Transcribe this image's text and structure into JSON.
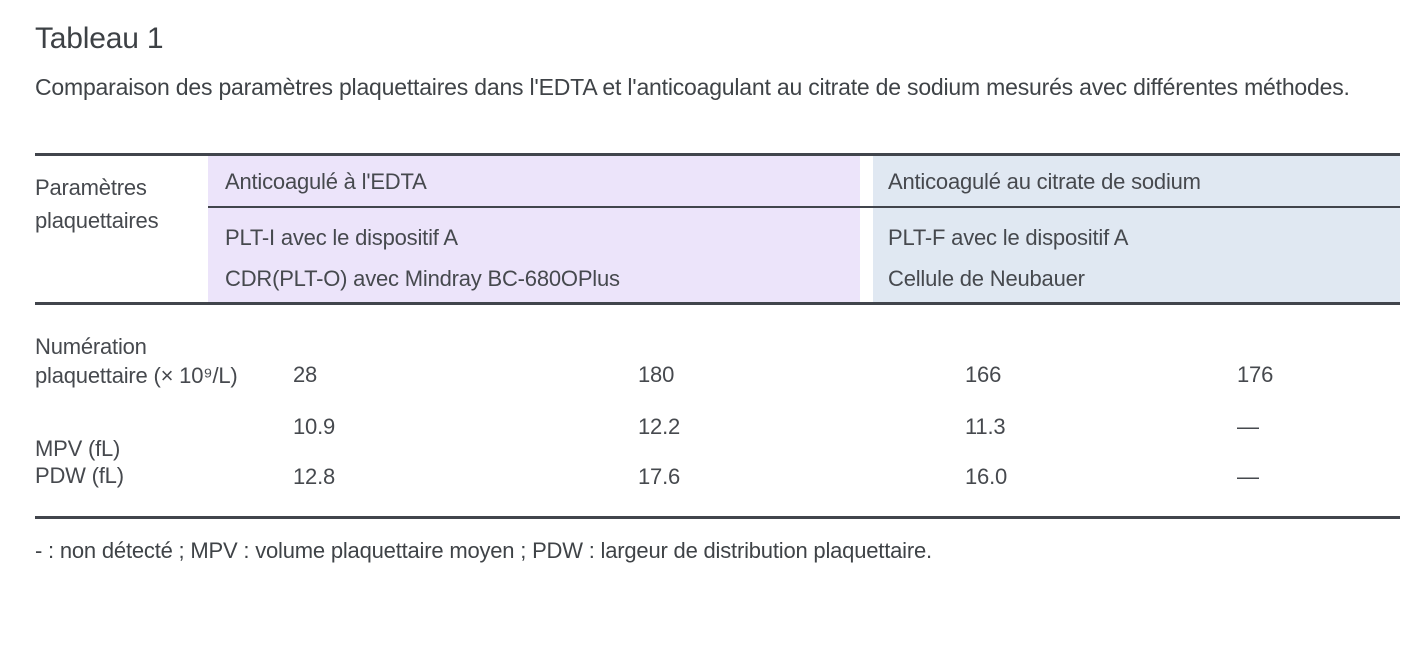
{
  "title": "Tableau 1",
  "subtitle": "Comparaison des paramètres plaquettaires dans l'EDTA et l'anticoagulant au citrate de sodium mesurés avec différentes méthodes.",
  "colors": {
    "edta_header_bg": "#ece4fa",
    "citrate_header_bg": "#e0e8f2",
    "rule": "#41454c",
    "text": "#46494e"
  },
  "table": {
    "corner_header": "Paramètres plaquettaires",
    "groups": [
      {
        "label": "Anticoagulé à l'EDTA",
        "methods": [
          "PLT-I avec le dispositif A",
          "CDR(PLT-O) avec Mindray BC-680OPlus"
        ]
      },
      {
        "label": "Anticoagulé au citrate de sodium",
        "methods": [
          "PLT-F avec le dispositif A",
          "Cellule de Neubauer"
        ]
      }
    ],
    "rows": [
      {
        "label_line1": "Numération",
        "label_line2": "plaquettaire (× 10⁹/L)",
        "values": [
          "28",
          "180",
          "166",
          "176"
        ]
      },
      {
        "label": "MPV (fL)",
        "values": [
          "10.9",
          "12.2",
          "11.3",
          "—"
        ]
      },
      {
        "label": "PDW (fL)",
        "values": [
          "12.8",
          "17.6",
          "16.0",
          "—"
        ]
      }
    ],
    "footnote": "- : non détecté ; MPV : volume plaquettaire moyen ; PDW : largeur de distribution plaquettaire."
  }
}
